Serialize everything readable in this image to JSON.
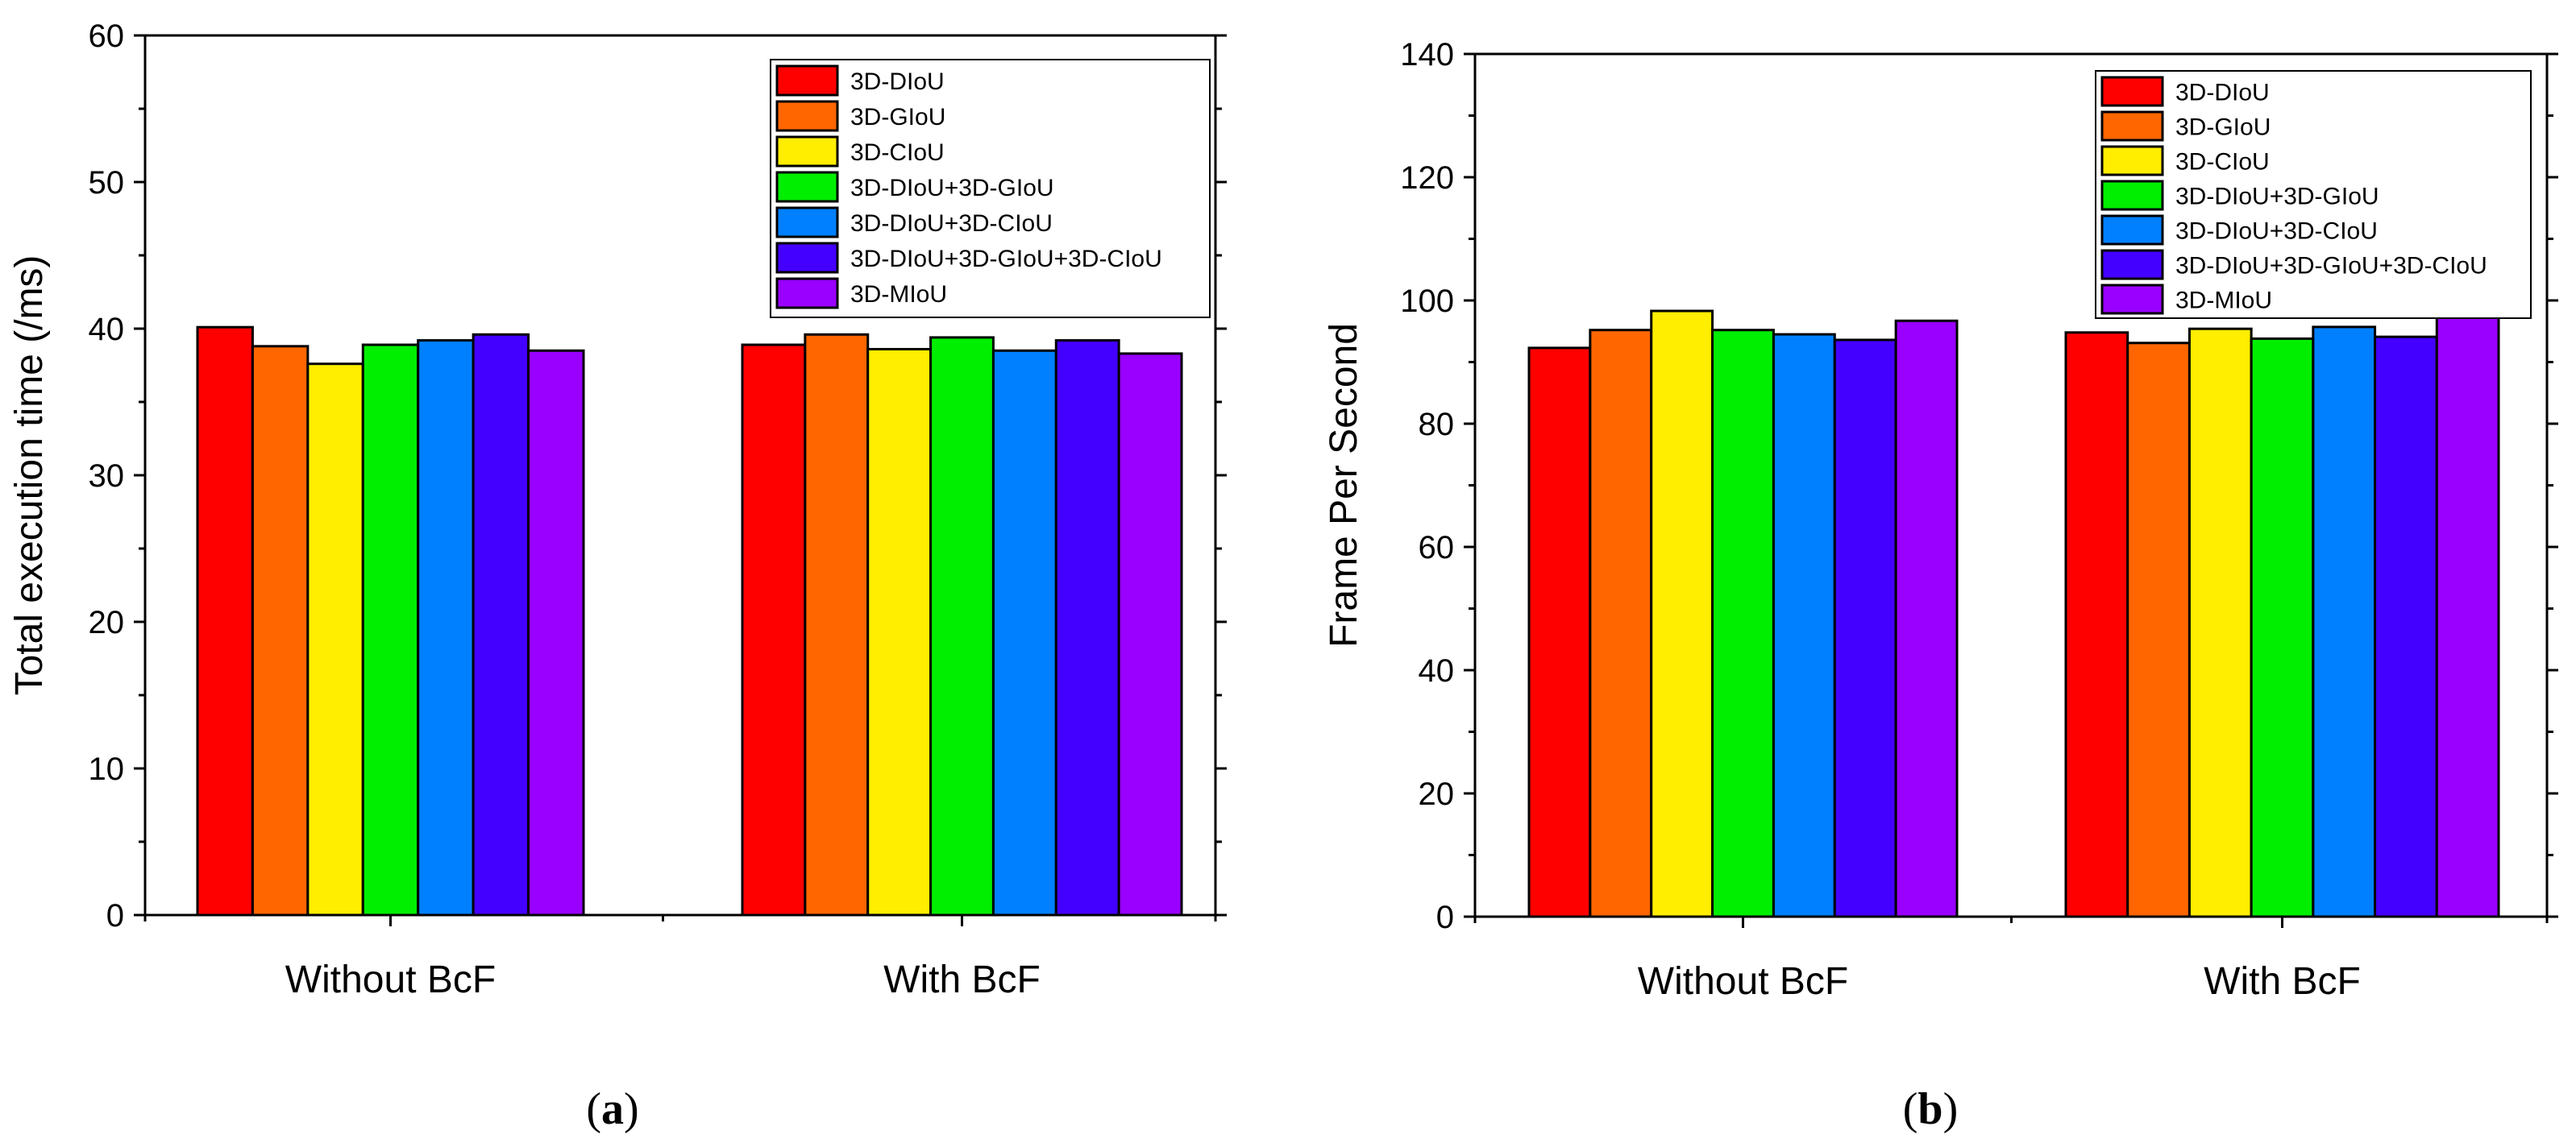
{
  "chart_data": [
    {
      "type": "bar",
      "panel_label": "(a)",
      "title": "",
      "xlabel": "",
      "ylabel": "Total execution time (/ms)",
      "ylim": [
        0,
        60
      ],
      "yticks": [
        0,
        10,
        20,
        30,
        40,
        50,
        60
      ],
      "grid": false,
      "legend_position": "top-right",
      "categories": [
        "Without BcF",
        "With BcF"
      ],
      "series": [
        {
          "name": "3D-DIoU",
          "color": "#ff0000",
          "values": [
            40.1,
            38.9
          ]
        },
        {
          "name": "3D-GIoU",
          "color": "#ff6600",
          "values": [
            38.8,
            39.6
          ]
        },
        {
          "name": "3D-CIoU",
          "color": "#ffee00",
          "values": [
            37.6,
            38.6
          ]
        },
        {
          "name": "3D-DIoU+3D-GIoU",
          "color": "#00ee00",
          "values": [
            38.9,
            39.4
          ]
        },
        {
          "name": "3D-DIoU+3D-CIoU",
          "color": "#0080ff",
          "values": [
            39.2,
            38.5
          ]
        },
        {
          "name": "3D-DIoU+3D-GIoU+3D-CIoU",
          "color": "#4400ff",
          "values": [
            39.6,
            39.2
          ]
        },
        {
          "name": "3D-MIoU",
          "color": "#9900ff",
          "values": [
            38.5,
            38.3
          ]
        }
      ]
    },
    {
      "type": "bar",
      "panel_label": "(b)",
      "title": "",
      "xlabel": "",
      "ylabel": "Frame Per Second",
      "ylim": [
        0,
        140
      ],
      "yticks": [
        0,
        20,
        40,
        60,
        80,
        100,
        120,
        140
      ],
      "grid": false,
      "legend_position": "top-right",
      "categories": [
        "Without BcF",
        "With BcF"
      ],
      "series": [
        {
          "name": "3D-DIoU",
          "color": "#ff0000",
          "values": [
            92.3,
            94.8
          ]
        },
        {
          "name": "3D-GIoU",
          "color": "#ff6600",
          "values": [
            95.2,
            93.1
          ]
        },
        {
          "name": "3D-CIoU",
          "color": "#ffee00",
          "values": [
            98.3,
            95.4
          ]
        },
        {
          "name": "3D-DIoU+3D-GIoU",
          "color": "#00ee00",
          "values": [
            95.2,
            93.8
          ]
        },
        {
          "name": "3D-DIoU+3D-CIoU",
          "color": "#0080ff",
          "values": [
            94.5,
            95.7
          ]
        },
        {
          "name": "3D-DIoU+3D-GIoU+3D-CIoU",
          "color": "#4400ff",
          "values": [
            93.6,
            94.1
          ]
        },
        {
          "name": "3D-MIoU",
          "color": "#9900ff",
          "values": [
            96.7,
            97.5
          ]
        }
      ]
    }
  ]
}
